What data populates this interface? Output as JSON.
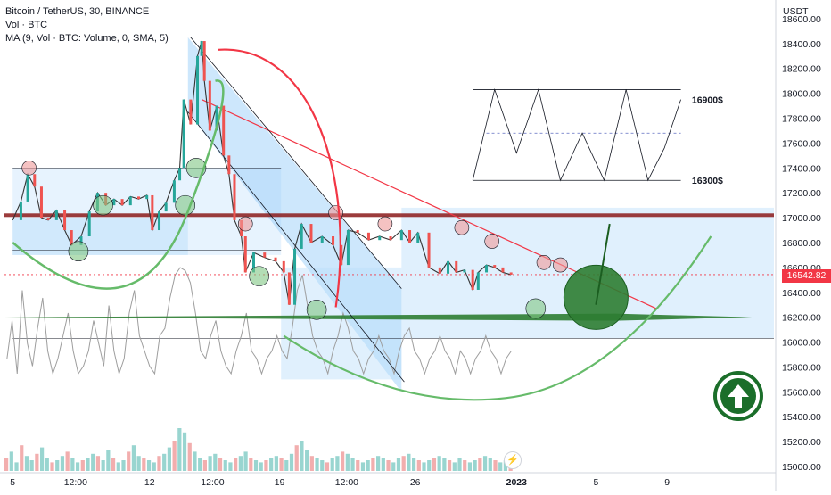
{
  "legend": {
    "symbol": "Bitcoin / TetherUS, 30, BINANCE",
    "volume": "Vol · BTC",
    "ma": "MA (9, Vol · BTC: Volume, 0, SMA, 5)"
  },
  "currency": "USDT",
  "last_price": "16542.82",
  "annotations": {
    "high_level": "16900$",
    "low_level": "16300$"
  },
  "icons": {
    "badge": "arrow-up-circle-icon",
    "alert": "lightning-icon"
  },
  "colors": {
    "accent_red": "#f23645",
    "accent_green": "#2e7d32",
    "band_blue": "#90caf9"
  },
  "chart_data": {
    "type": "candlestick",
    "title": "",
    "xlabel": "",
    "ylabel": "",
    "y_ticks": [
      "18600.00",
      "18400.00",
      "18200.00",
      "18000.00",
      "17800.00",
      "17600.00",
      "17400.00",
      "17200.00",
      "17000.00",
      "16800.00",
      "16600.00",
      "16400.00",
      "16200.00",
      "16000.00",
      "15800.00",
      "15600.00",
      "15400.00",
      "15200.00",
      "15000.00"
    ],
    "x_ticks": [
      {
        "label": "5",
        "t": 0.0
      },
      {
        "label": "12:00",
        "t": 2.3
      },
      {
        "label": "12",
        "t": 5.0
      },
      {
        "label": "12:00",
        "t": 7.3
      },
      {
        "label": "19",
        "t": 9.75
      },
      {
        "label": "12:00",
        "t": 12.2
      },
      {
        "label": "26",
        "t": 14.7
      },
      {
        "label": "2023",
        "t": 18.4
      },
      {
        "label": "5",
        "t": 21.3
      },
      {
        "label": "9",
        "t": 23.9
      }
    ],
    "ylim": [
      14950,
      18750
    ],
    "xlim": [
      -0.3,
      27.8
    ],
    "grid": false,
    "price_path": [
      [
        0.0,
        16980
      ],
      [
        0.3,
        17130
      ],
      [
        0.55,
        17350
      ],
      [
        0.8,
        17250
      ],
      [
        1.05,
        17000
      ],
      [
        1.3,
        16980
      ],
      [
        1.6,
        17060
      ],
      [
        1.9,
        16900
      ],
      [
        2.15,
        16780
      ],
      [
        2.5,
        16850
      ],
      [
        2.8,
        17050
      ],
      [
        3.1,
        17200
      ],
      [
        3.4,
        17100
      ],
      [
        3.7,
        17150
      ],
      [
        4.0,
        17100
      ],
      [
        4.3,
        17170
      ],
      [
        4.6,
        17150
      ],
      [
        4.9,
        17180
      ],
      [
        5.1,
        16900
      ],
      [
        5.35,
        17050
      ],
      [
        5.6,
        17120
      ],
      [
        5.9,
        17300
      ],
      [
        6.1,
        17400
      ],
      [
        6.25,
        17950
      ],
      [
        6.5,
        17750
      ],
      [
        6.75,
        18300
      ],
      [
        6.9,
        18420
      ],
      [
        7.0,
        18100
      ],
      [
        7.2,
        17700
      ],
      [
        7.45,
        17900
      ],
      [
        7.7,
        17500
      ],
      [
        7.9,
        17350
      ],
      [
        8.1,
        16980
      ],
      [
        8.35,
        16850
      ],
      [
        8.5,
        16560
      ],
      [
        8.8,
        16720
      ],
      [
        9.2,
        16680
      ],
      [
        9.6,
        16650
      ],
      [
        9.9,
        16560
      ],
      [
        10.1,
        16300
      ],
      [
        10.3,
        16750
      ],
      [
        10.55,
        16950
      ],
      [
        10.9,
        16800
      ],
      [
        11.3,
        16850
      ],
      [
        11.7,
        16780
      ],
      [
        12.0,
        16620
      ],
      [
        12.25,
        16900
      ],
      [
        12.6,
        16880
      ],
      [
        13.0,
        16820
      ],
      [
        13.4,
        16850
      ],
      [
        13.8,
        16820
      ],
      [
        14.2,
        16900
      ],
      [
        14.5,
        16800
      ],
      [
        14.8,
        16880
      ],
      [
        15.2,
        16600
      ],
      [
        15.6,
        16550
      ],
      [
        15.9,
        16650
      ],
      [
        16.2,
        16560
      ],
      [
        16.5,
        16580
      ],
      [
        16.8,
        16420
      ],
      [
        17.0,
        16560
      ],
      [
        17.3,
        16620
      ],
      [
        17.6,
        16600
      ],
      [
        17.9,
        16560
      ],
      [
        18.2,
        16542
      ]
    ],
    "volume_bars": {
      "scale_max": 100,
      "values": [
        30,
        45,
        20,
        60,
        35,
        25,
        40,
        55,
        30,
        20,
        25,
        35,
        45,
        30,
        20,
        25,
        30,
        40,
        35,
        25,
        50,
        30,
        20,
        25,
        45,
        60,
        35,
        30,
        25,
        20,
        35,
        40,
        55,
        70,
        100,
        90,
        65,
        45,
        30,
        25,
        35,
        40,
        30,
        25,
        20,
        30,
        35,
        45,
        30,
        25,
        20,
        25,
        30,
        35,
        30,
        25,
        40,
        60,
        70,
        50,
        35,
        30,
        25,
        20,
        30,
        35,
        45,
        40,
        30,
        25,
        20,
        25,
        30,
        35,
        30,
        25,
        20,
        30,
        35,
        40,
        30,
        25,
        20,
        25,
        30,
        35,
        30,
        25,
        20,
        30,
        25,
        20,
        25,
        30,
        35,
        30,
        25,
        20,
        25,
        30
      ]
    },
    "volume_ma": {
      "scale_max": 100,
      "values": [
        40,
        65,
        30,
        85,
        50,
        35,
        60,
        80,
        45,
        30,
        40,
        55,
        70,
        45,
        30,
        35,
        45,
        65,
        50,
        35,
        75,
        45,
        30,
        40,
        70,
        85,
        55,
        45,
        35,
        30,
        55,
        60,
        80,
        95,
        100,
        98,
        90,
        70,
        45,
        40,
        55,
        65,
        45,
        35,
        30,
        45,
        55,
        70,
        45,
        40,
        30,
        40,
        45,
        55,
        45,
        40,
        60,
        85,
        95,
        75,
        55,
        45,
        40,
        30,
        45,
        55,
        70,
        60,
        45,
        40,
        30,
        40,
        45,
        55,
        45,
        40,
        30,
        45,
        55,
        60,
        45,
        40,
        30,
        40,
        45,
        55,
        45,
        40,
        30,
        45,
        40,
        30,
        40,
        45,
        55,
        45,
        40,
        30,
        40,
        45
      ]
    },
    "horizontal_levels": [
      {
        "name": "resistance-red",
        "y": 17020
      },
      {
        "name": "support-green",
        "y": 16200
      },
      {
        "name": "range-top",
        "y": 17080
      },
      {
        "name": "range-bottom",
        "y": 16030
      },
      {
        "name": "current-price",
        "y": 16542
      }
    ],
    "trendlines": [
      {
        "name": "descending-red",
        "x1": 6.9,
        "y1": 17950,
        "x2": 23.5,
        "y2": 16270
      },
      {
        "name": "channel-upper",
        "x1": 6.5,
        "y1": 18450,
        "x2": 14.2,
        "y2": 16430
      },
      {
        "name": "channel-lower",
        "x1": 6.4,
        "y1": 17850,
        "x2": 14.3,
        "y2": 15680
      }
    ],
    "markers": [
      {
        "type": "resistance",
        "x": 0.6,
        "y": 17400
      },
      {
        "type": "resistance",
        "x": 8.5,
        "y": 16950
      },
      {
        "type": "resistance",
        "x": 11.8,
        "y": 17040
      },
      {
        "type": "resistance",
        "x": 13.6,
        "y": 16950
      },
      {
        "type": "resistance",
        "x": 16.4,
        "y": 16920
      },
      {
        "type": "resistance",
        "x": 17.5,
        "y": 16810
      },
      {
        "type": "resistance",
        "x": 19.4,
        "y": 16640
      },
      {
        "type": "resistance",
        "x": 20.0,
        "y": 16620
      },
      {
        "type": "support",
        "x": 2.4,
        "y": 16730
      },
      {
        "type": "support",
        "x": 3.3,
        "y": 17100
      },
      {
        "type": "support",
        "x": 6.3,
        "y": 17100
      },
      {
        "type": "support",
        "x": 6.7,
        "y": 17400
      },
      {
        "type": "support",
        "x": 9.0,
        "y": 16530
      },
      {
        "type": "support",
        "x": 11.1,
        "y": 16260
      },
      {
        "type": "support",
        "x": 19.1,
        "y": 16270
      }
    ],
    "big_circle": {
      "x": 21.3,
      "y": 16360
    },
    "range_box": {
      "top": 16900,
      "bottom": 16300
    }
  }
}
